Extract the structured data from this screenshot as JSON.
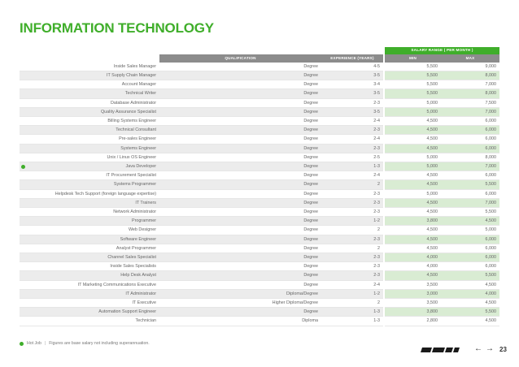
{
  "page": {
    "title": "INFORMATION TECHNOLOGY",
    "page_number": "23",
    "footnote_hot_label": "Hot Job",
    "footnote_separator": "|",
    "footnote_text": "Figures are base salary not including superannuation.",
    "accent_color": "#3fae2a"
  },
  "table": {
    "band_label": "SALARY RANGE ( PER MONTH )",
    "headers": {
      "qualification": "QUALIFICATION",
      "experience": "EXPERIENCE (YEARS)",
      "min": "MIN",
      "max": "MAX"
    },
    "rows": [
      {
        "job": "Inside Sales Manager",
        "qualification": "Degree",
        "experience": "4-5",
        "min": "5,500",
        "max": "9,000",
        "hot": false
      },
      {
        "job": "IT Supply Chain Manager",
        "qualification": "Degree",
        "experience": "3-5",
        "min": "5,500",
        "max": "8,000",
        "hot": false
      },
      {
        "job": "Account Manager",
        "qualification": "Degree",
        "experience": "3-4",
        "min": "5,500",
        "max": "7,000",
        "hot": false
      },
      {
        "job": "Technical Writer",
        "qualification": "Degree",
        "experience": "3-5",
        "min": "5,500",
        "max": "8,000",
        "hot": false
      },
      {
        "job": "Database Administrator",
        "qualification": "Degree",
        "experience": "2-3",
        "min": "5,000",
        "max": "7,500",
        "hot": false
      },
      {
        "job": "Quality Assurance Specialist",
        "qualification": "Degree",
        "experience": "3-5",
        "min": "5,000",
        "max": "7,000",
        "hot": false
      },
      {
        "job": "Billing Systems Engineer",
        "qualification": "Degree",
        "experience": "2-4",
        "min": "4,500",
        "max": "6,000",
        "hot": false
      },
      {
        "job": "Technical Consultant",
        "qualification": "Degree",
        "experience": "2-3",
        "min": "4,500",
        "max": "6,000",
        "hot": false
      },
      {
        "job": "Pre-sales Engineer",
        "qualification": "Degree",
        "experience": "2-4",
        "min": "4,500",
        "max": "6,000",
        "hot": false
      },
      {
        "job": "Systems Engineer",
        "qualification": "Degree",
        "experience": "2-3",
        "min": "4,500",
        "max": "6,000",
        "hot": false
      },
      {
        "job": "Unix / Linux OS Engineer",
        "qualification": "Degree",
        "experience": "2-5",
        "min": "5,000",
        "max": "8,000",
        "hot": false
      },
      {
        "job": "Java Developer",
        "qualification": "Degree",
        "experience": "1-3",
        "min": "5,000",
        "max": "7,000",
        "hot": true
      },
      {
        "job": "IT Procurement Specialist",
        "qualification": "Degree",
        "experience": "2-4",
        "min": "4,500",
        "max": "6,000",
        "hot": false
      },
      {
        "job": "Systems Programmer",
        "qualification": "Degree",
        "experience": "2",
        "min": "4,500",
        "max": "5,500",
        "hot": false
      },
      {
        "job": "Helpdesk Tech Support (foreign language expertise)",
        "qualification": "Degree",
        "experience": "2-3",
        "min": "5,000",
        "max": "6,000",
        "hot": false
      },
      {
        "job": "IT Trainers",
        "qualification": "Degree",
        "experience": "2-3",
        "min": "4,500",
        "max": "7,000",
        "hot": false
      },
      {
        "job": "Network Administrator",
        "qualification": "Degree",
        "experience": "2-3",
        "min": "4,500",
        "max": "5,500",
        "hot": false
      },
      {
        "job": "Programmer",
        "qualification": "Degree",
        "experience": "1-2",
        "min": "3,800",
        "max": "4,500",
        "hot": false
      },
      {
        "job": "Web Designer",
        "qualification": "Degree",
        "experience": "2",
        "min": "4,500",
        "max": "5,000",
        "hot": false
      },
      {
        "job": "Software Engineer",
        "qualification": "Degree",
        "experience": "2-3",
        "min": "4,500",
        "max": "6,000",
        "hot": false
      },
      {
        "job": "Analyst Programmer",
        "qualification": "Degree",
        "experience": "2",
        "min": "4,500",
        "max": "6,000",
        "hot": false
      },
      {
        "job": "Channel Sales Specialist",
        "qualification": "Degree",
        "experience": "2-3",
        "min": "4,000",
        "max": "6,000",
        "hot": false
      },
      {
        "job": "Inside Sales Specialists",
        "qualification": "Degree",
        "experience": "2-3",
        "min": "4,000",
        "max": "6,000",
        "hot": false
      },
      {
        "job": "Help Desk Analyst",
        "qualification": "Degree",
        "experience": "2-3",
        "min": "4,500",
        "max": "5,500",
        "hot": false
      },
      {
        "job": "IT Marketing Communications Executive",
        "qualification": "Degree",
        "experience": "2-4",
        "min": "3,500",
        "max": "4,500",
        "hot": false
      },
      {
        "job": "IT Administrator",
        "qualification": "Diploma/Degree",
        "experience": "1-2",
        "min": "3,000",
        "max": "4,000",
        "hot": false
      },
      {
        "job": "IT Executive",
        "qualification": "Higher Diploma/Degree",
        "experience": "2",
        "min": "3,500",
        "max": "4,500",
        "hot": false
      },
      {
        "job": "Automation Support Engineer",
        "qualification": "Degree",
        "experience": "1-3",
        "min": "3,800",
        "max": "5,500",
        "hot": false
      },
      {
        "job": "Technician",
        "qualification": "Diploma",
        "experience": "1-3",
        "min": "2,800",
        "max": "4,500",
        "hot": false
      }
    ]
  }
}
